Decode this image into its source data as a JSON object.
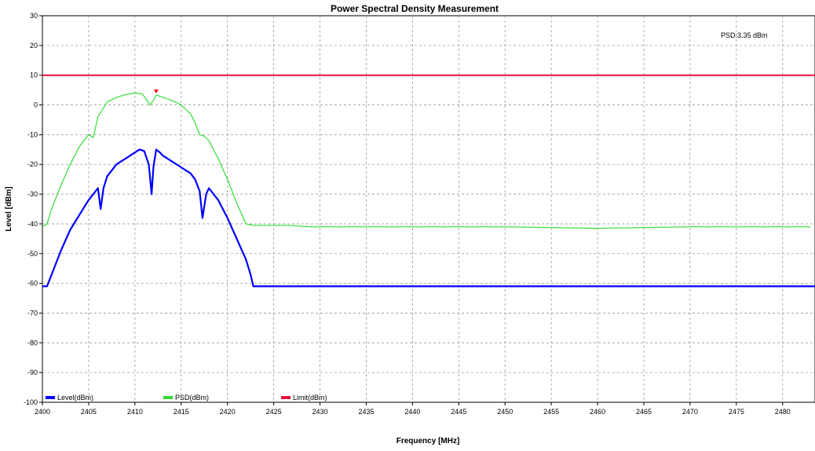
{
  "chart_data": {
    "type": "line",
    "title": "Power Spectral Density Measurement",
    "xlabel": "Frequency [MHz]",
    "ylabel": "Level [dBm]",
    "xlim": [
      2400,
      2483.5
    ],
    "ylim": [
      -100,
      30
    ],
    "xticks": [
      2400,
      2405,
      2410,
      2415,
      2420,
      2425,
      2430,
      2435,
      2440,
      2445,
      2450,
      2455,
      2460,
      2465,
      2470,
      2475,
      2480
    ],
    "yticks": [
      30,
      20,
      10,
      0,
      -10,
      -20,
      -30,
      -40,
      -50,
      -60,
      -70,
      -80,
      -90,
      -100
    ],
    "grid": true,
    "legend_position": "bottom",
    "annotation": "PSD:3.35 dBm",
    "marker": {
      "x": 2412.3,
      "y": 3.35,
      "color": "#ff0000"
    },
    "series": [
      {
        "name": "Level(dBm)",
        "color": "#0000ff",
        "x": [
          2400,
          2400.5,
          2401,
          2402,
          2403,
          2404,
          2405,
          2405.5,
          2406,
          2406.3,
          2406.6,
          2407,
          2408,
          2409,
          2410,
          2410.5,
          2411,
          2411.5,
          2411.8,
          2412,
          2412.3,
          2412.7,
          2413,
          2414,
          2415,
          2416,
          2416.5,
          2417,
          2417.3,
          2417.7,
          2418,
          2419,
          2420,
          2421,
          2422,
          2422.5,
          2422.8,
          2425,
          2430,
          2440,
          2450,
          2460,
          2470,
          2480,
          2483.5
        ],
        "values": [
          -61,
          -61,
          -57,
          -49,
          -42,
          -37,
          -32,
          -30,
          -28,
          -35,
          -28,
          -24,
          -20,
          -18,
          -16,
          -15,
          -15.5,
          -20,
          -30,
          -21,
          -15,
          -16,
          -17,
          -19,
          -21,
          -23,
          -25,
          -29,
          -38,
          -30,
          -28,
          -32,
          -38,
          -45,
          -52,
          -57,
          -61,
          -61,
          -61,
          -61,
          -61,
          -61,
          -61,
          -61,
          -61
        ]
      },
      {
        "name": "PSD(dBm)",
        "color": "#33dd33",
        "x": [
          2400,
          2400.5,
          2401,
          2402,
          2403,
          2404,
          2405,
          2405.5,
          2406,
          2407,
          2408,
          2409,
          2410,
          2410.8,
          2411.2,
          2411.6,
          2412,
          2412.3,
          2412.8,
          2414,
          2415,
          2416,
          2416.5,
          2417,
          2417.5,
          2418,
          2419,
          2420,
          2421,
          2422,
          2422.8,
          2423,
          2426.5,
          2429,
          2440,
          2450,
          2460,
          2470,
          2480,
          2483
        ],
        "values": [
          -41,
          -40,
          -35,
          -27,
          -20,
          -14,
          -10,
          -11,
          -4,
          1,
          2.5,
          3.5,
          4,
          3.7,
          2,
          0,
          1.5,
          3.35,
          2.8,
          1.5,
          0,
          -3,
          -6,
          -10,
          -10.5,
          -12,
          -18,
          -25,
          -33,
          -40,
          -40.5,
          -40.5,
          -40.5,
          -41,
          -41,
          -41,
          -41.5,
          -41,
          -41,
          -41
        ]
      },
      {
        "name": "Limit(dBm)",
        "color": "#e8113c",
        "x": [
          2400,
          2483.5
        ],
        "values": [
          10,
          10
        ]
      }
    ]
  }
}
